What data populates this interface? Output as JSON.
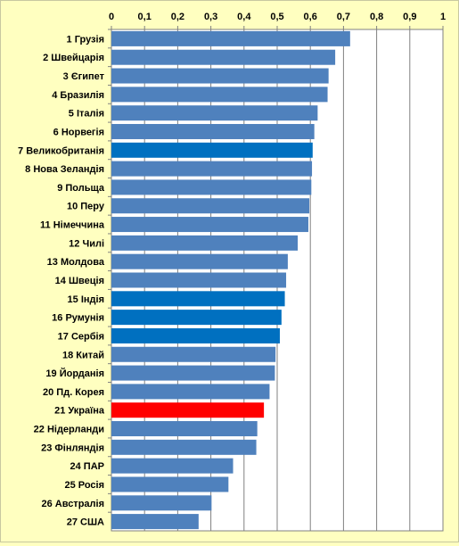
{
  "chart_data": {
    "type": "bar",
    "orientation": "horizontal",
    "categories": [
      "1 Грузія",
      "2 Швейцарія",
      "3 Єгипет",
      "4 Бразилія",
      "5 Італія",
      "6 Норвегія",
      "7 Великобританія",
      "8 Нова Зеландія",
      "9 Польща",
      "10 Перу",
      "11 Німеччина",
      "12 Чилі",
      "13 Молдова",
      "14 Швеція",
      "15 Індія",
      "16 Румунія",
      "17 Сербія",
      "18 Китай",
      "19 Йорданія",
      "20 Пд. Корея",
      "21 Україна",
      "22 Нідерланди",
      "23 Фінляндія",
      "24 ПАР",
      "25 Росія",
      "26 Австралія",
      "27 США"
    ],
    "values": [
      0.72,
      0.675,
      0.655,
      0.652,
      0.622,
      0.612,
      0.607,
      0.605,
      0.603,
      0.597,
      0.594,
      0.562,
      0.532,
      0.527,
      0.523,
      0.513,
      0.508,
      0.495,
      0.493,
      0.477,
      0.46,
      0.44,
      0.437,
      0.367,
      0.353,
      0.302,
      0.263
    ],
    "bar_colors": [
      "#4f81bd",
      "#4f81bd",
      "#4f81bd",
      "#4f81bd",
      "#4f81bd",
      "#4f81bd",
      "#0070c0",
      "#4f81bd",
      "#4f81bd",
      "#4f81bd",
      "#4f81bd",
      "#4f81bd",
      "#4f81bd",
      "#4f81bd",
      "#0070c0",
      "#0070c0",
      "#0070c0",
      "#4f81bd",
      "#4f81bd",
      "#4f81bd",
      "#ff0000",
      "#4f81bd",
      "#4f81bd",
      "#4f81bd",
      "#4f81bd",
      "#4f81bd",
      "#4f81bd"
    ],
    "xlim": [
      0,
      1
    ],
    "x_ticks": [
      "0",
      "0,1",
      "0,2",
      "0,3",
      "0,4",
      "0,5",
      "0,6",
      "0,7",
      "0,8",
      "0,9",
      "1"
    ],
    "x_axis_position": "top",
    "grid": true,
    "legend": false,
    "plot_background": "#ffffff"
  }
}
